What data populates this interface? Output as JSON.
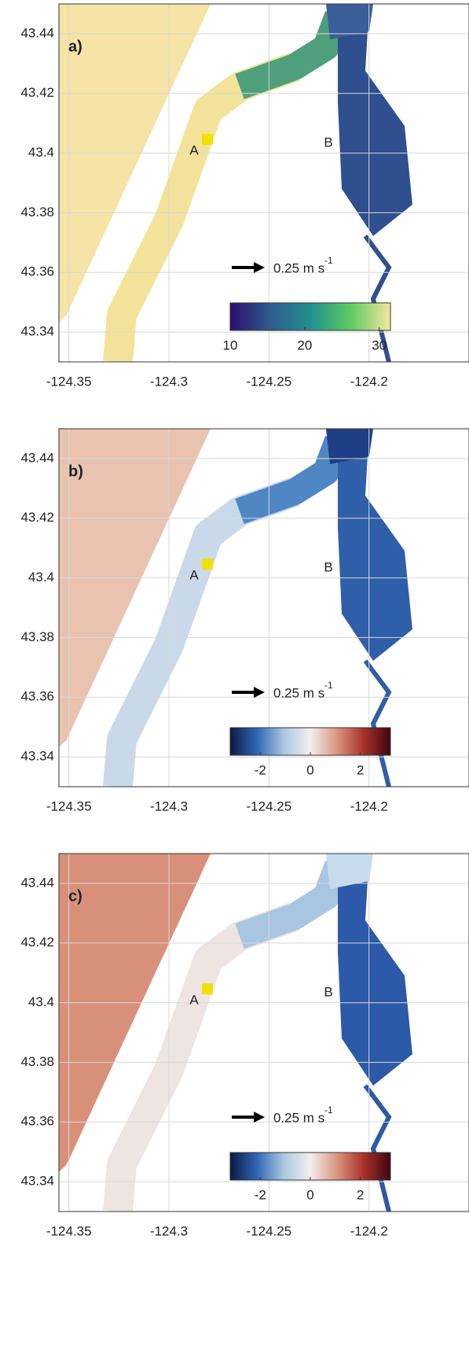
{
  "panels": [
    {
      "label": "a)",
      "point_a": "A",
      "point_b": "B",
      "scale_label": "0.25 m s",
      "scale_sup": "-1",
      "xlim": [
        -124.355,
        -124.15
      ],
      "ylim": [
        43.33,
        43.45
      ],
      "xticks": [
        -124.35,
        -124.3,
        -124.25,
        -124.2
      ],
      "yticks": [
        43.34,
        43.36,
        43.38,
        43.4,
        43.42,
        43.44
      ],
      "colorbar": {
        "lim": [
          10,
          31.5
        ],
        "ticks": [
          10,
          20,
          30
        ],
        "colormap": [
          "#2c0f6b",
          "#2f5b8d",
          "#21908d",
          "#5ec962",
          "#f5e6a0"
        ]
      }
    },
    {
      "label": "b)",
      "point_a": "A",
      "point_b": "B",
      "scale_label": "0.25 m s",
      "scale_sup": "-1",
      "xlim": [
        -124.355,
        -124.15
      ],
      "ylim": [
        43.33,
        43.45
      ],
      "xticks": [
        -124.35,
        -124.3,
        -124.25,
        -124.2
      ],
      "yticks": [
        43.34,
        43.36,
        43.38,
        43.4,
        43.42,
        43.44
      ],
      "colorbar": {
        "lim": [
          -3.2,
          3.2
        ],
        "ticks": [
          -2,
          0,
          2
        ],
        "colormap": [
          "#0d1a45",
          "#2f66b3",
          "#a9c7e0",
          "#f4efee",
          "#d9957f",
          "#a8322b",
          "#3f0612"
        ]
      }
    },
    {
      "label": "c)",
      "point_a": "A",
      "point_b": "B",
      "scale_label": "0.25 m s",
      "scale_sup": "-1",
      "xlim": [
        -124.355,
        -124.15
      ],
      "ylim": [
        43.33,
        43.45
      ],
      "xticks": [
        -124.35,
        -124.3,
        -124.25,
        -124.2
      ],
      "yticks": [
        43.34,
        43.36,
        43.38,
        43.4,
        43.42,
        43.44
      ],
      "colorbar": {
        "lim": [
          -3.2,
          3.2
        ],
        "ticks": [
          -2,
          0,
          2
        ],
        "colormap": [
          "#0d1a45",
          "#2f66b3",
          "#a9c7e0",
          "#f4efee",
          "#d9957f",
          "#a8322b",
          "#3f0612"
        ]
      }
    }
  ]
}
